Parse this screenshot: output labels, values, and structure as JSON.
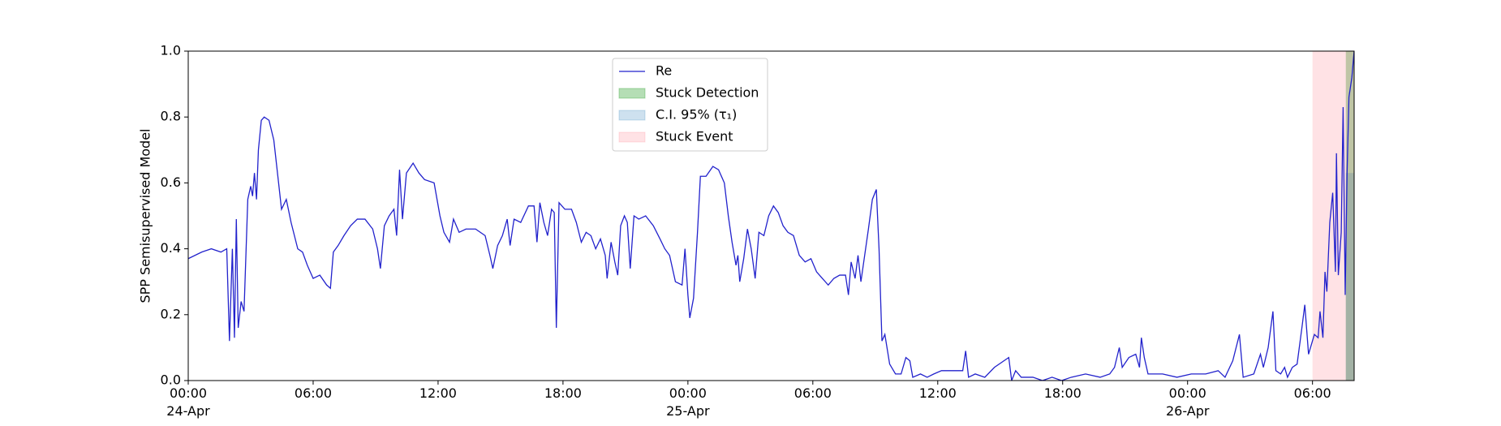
{
  "chart_data": {
    "type": "line",
    "y_label": "SPP Semisupervised Model",
    "xlim": [
      0,
      56
    ],
    "ylim": [
      0,
      1
    ],
    "xticks": [
      {
        "value": 0,
        "label": "00:00\n24-Apr"
      },
      {
        "value": 6,
        "label": "06:00"
      },
      {
        "value": 12,
        "label": "12:00"
      },
      {
        "value": 18,
        "label": "18:00"
      },
      {
        "value": 24,
        "label": "00:00\n25-Apr"
      },
      {
        "value": 30,
        "label": "06:00"
      },
      {
        "value": 36,
        "label": "12:00"
      },
      {
        "value": 42,
        "label": "18:00"
      },
      {
        "value": 48,
        "label": "00:00\n26-Apr"
      },
      {
        "value": 54,
        "label": "06:00"
      }
    ],
    "yticks": [
      {
        "value": 0,
        "label": "0.0"
      },
      0.2,
      0.4,
      0.6,
      0.8,
      {
        "value": 1,
        "label": "1.0"
      }
    ],
    "legend": "upper center",
    "x": [
      0,
      0.65,
      1.11,
      1.57,
      1.85,
      1.98,
      2.12,
      2.22,
      2.31,
      2.4,
      2.54,
      2.68,
      2.86,
      3.0,
      3.09,
      3.18,
      3.28,
      3.37,
      3.51,
      3.65,
      3.88,
      4.11,
      4.34,
      4.48,
      4.71,
      4.94,
      5.26,
      5.49,
      5.72,
      6.0,
      6.32,
      6.65,
      6.83,
      6.97,
      7.2,
      7.48,
      7.8,
      8.12,
      8.49,
      8.86,
      9.09,
      9.23,
      9.42,
      9.65,
      9.88,
      10.01,
      10.15,
      10.29,
      10.48,
      10.8,
      11.08,
      11.35,
      11.81,
      12.09,
      12.28,
      12.55,
      12.74,
      13.01,
      13.34,
      13.8,
      14.26,
      14.49,
      14.63,
      14.86,
      15.09,
      15.32,
      15.46,
      15.65,
      15.97,
      16.34,
      16.61,
      16.75,
      16.89,
      17.08,
      17.26,
      17.45,
      17.58,
      17.68,
      17.81,
      18.09,
      18.41,
      18.64,
      18.88,
      19.11,
      19.34,
      19.57,
      19.8,
      20.03,
      20.12,
      20.31,
      20.49,
      20.63,
      20.77,
      20.95,
      21.09,
      21.23,
      21.41,
      21.64,
      21.97,
      22.34,
      22.66,
      22.89,
      23.12,
      23.4,
      23.72,
      23.86,
      24.0,
      24.09,
      24.27,
      24.46,
      24.6,
      24.87,
      25.2,
      25.47,
      25.75,
      25.94,
      26.12,
      26.31,
      26.4,
      26.49,
      26.68,
      26.86,
      27.04,
      27.23,
      27.41,
      27.65,
      27.88,
      28.11,
      28.34,
      28.57,
      28.8,
      29.07,
      29.35,
      29.63,
      29.91,
      30.18,
      30.46,
      30.74,
      31.01,
      31.29,
      31.57,
      31.71,
      31.84,
      32.03,
      32.17,
      32.31,
      32.49,
      32.67,
      32.86,
      33.05,
      33.18,
      33.32,
      33.46,
      33.69,
      33.97,
      34.24,
      34.47,
      34.66,
      34.8,
      35.17,
      35.49,
      35.81,
      36.18,
      36.64,
      37.2,
      37.34,
      37.48,
      37.8,
      38.26,
      38.72,
      39.18,
      39.41,
      39.55,
      39.74,
      40.01,
      40.57,
      41.03,
      41.49,
      41.95,
      42.41,
      43.1,
      43.8,
      44.26,
      44.49,
      44.72,
      44.86,
      45.18,
      45.51,
      45.69,
      45.78,
      45.92,
      46.1,
      46.8,
      47.49,
      48.18,
      48.87,
      49.47,
      49.8,
      50.17,
      50.49,
      50.67,
      51.18,
      51.5,
      51.64,
      51.87,
      52.1,
      52.24,
      52.47,
      52.66,
      52.8,
      53.03,
      53.26,
      53.49,
      53.63,
      53.81,
      54.09,
      54.27,
      54.36,
      54.5,
      54.6,
      54.69,
      54.83,
      54.97,
      55.1,
      55.15,
      55.24,
      55.38,
      55.47,
      55.57,
      55.66,
      55.75,
      55.89,
      56
    ],
    "series": [
      {
        "name": "Re",
        "color": "#2222cc",
        "values": [
          0.37,
          0.39,
          0.4,
          0.39,
          0.4,
          0.12,
          0.4,
          0.13,
          0.49,
          0.16,
          0.24,
          0.21,
          0.55,
          0.59,
          0.56,
          0.63,
          0.55,
          0.7,
          0.79,
          0.8,
          0.79,
          0.73,
          0.6,
          0.52,
          0.55,
          0.48,
          0.4,
          0.39,
          0.35,
          0.31,
          0.32,
          0.29,
          0.28,
          0.39,
          0.41,
          0.44,
          0.47,
          0.49,
          0.49,
          0.46,
          0.4,
          0.34,
          0.47,
          0.5,
          0.52,
          0.44,
          0.64,
          0.49,
          0.63,
          0.66,
          0.63,
          0.61,
          0.6,
          0.5,
          0.45,
          0.42,
          0.49,
          0.45,
          0.46,
          0.46,
          0.44,
          0.38,
          0.34,
          0.41,
          0.44,
          0.49,
          0.41,
          0.49,
          0.48,
          0.53,
          0.53,
          0.42,
          0.54,
          0.48,
          0.44,
          0.52,
          0.51,
          0.16,
          0.54,
          0.52,
          0.52,
          0.48,
          0.42,
          0.45,
          0.44,
          0.4,
          0.43,
          0.38,
          0.31,
          0.42,
          0.36,
          0.32,
          0.47,
          0.5,
          0.48,
          0.34,
          0.5,
          0.49,
          0.5,
          0.47,
          0.43,
          0.4,
          0.38,
          0.3,
          0.29,
          0.4,
          0.26,
          0.19,
          0.25,
          0.45,
          0.62,
          0.62,
          0.65,
          0.64,
          0.6,
          0.5,
          0.42,
          0.35,
          0.38,
          0.3,
          0.37,
          0.46,
          0.4,
          0.31,
          0.45,
          0.44,
          0.5,
          0.53,
          0.51,
          0.47,
          0.45,
          0.44,
          0.38,
          0.36,
          0.37,
          0.33,
          0.31,
          0.29,
          0.31,
          0.32,
          0.32,
          0.26,
          0.36,
          0.31,
          0.38,
          0.3,
          0.38,
          0.46,
          0.55,
          0.58,
          0.4,
          0.12,
          0.14,
          0.05,
          0.02,
          0.02,
          0.07,
          0.06,
          0.01,
          0.02,
          0.01,
          0.02,
          0.03,
          0.03,
          0.03,
          0.09,
          0.01,
          0.02,
          0.01,
          0.04,
          0.06,
          0.07,
          0,
          0.03,
          0.01,
          0.01,
          0,
          0.01,
          0,
          0.01,
          0.02,
          0.01,
          0.02,
          0.04,
          0.1,
          0.04,
          0.07,
          0.08,
          0.04,
          0.13,
          0.07,
          0.02,
          0.02,
          0.01,
          0.02,
          0.02,
          0.03,
          0.01,
          0.06,
          0.14,
          0.01,
          0.02,
          0.08,
          0.04,
          0.1,
          0.21,
          0.03,
          0.02,
          0.04,
          0.01,
          0.04,
          0.05,
          0.16,
          0.23,
          0.08,
          0.14,
          0.13,
          0.21,
          0.13,
          0.33,
          0.27,
          0.48,
          0.57,
          0.33,
          0.69,
          0.32,
          0.45,
          0.83,
          0.26,
          0.63,
          0.86,
          0.92,
          1
        ]
      }
    ],
    "spans": [
      {
        "name": "Stuck Detection",
        "color": "#2ca02c",
        "alpha": 0.35,
        "x": [
          55.6,
          56
        ]
      },
      {
        "name": "C.I. 95% (τ₁)",
        "color": "#1f77b4",
        "alpha": 0.22,
        "x": [
          55.6,
          56
        ],
        "y": [
          0,
          0.63
        ]
      },
      {
        "name": "Stuck Event",
        "color": "#ff3344",
        "alpha": 0.14,
        "x": [
          54,
          56
        ]
      }
    ]
  }
}
